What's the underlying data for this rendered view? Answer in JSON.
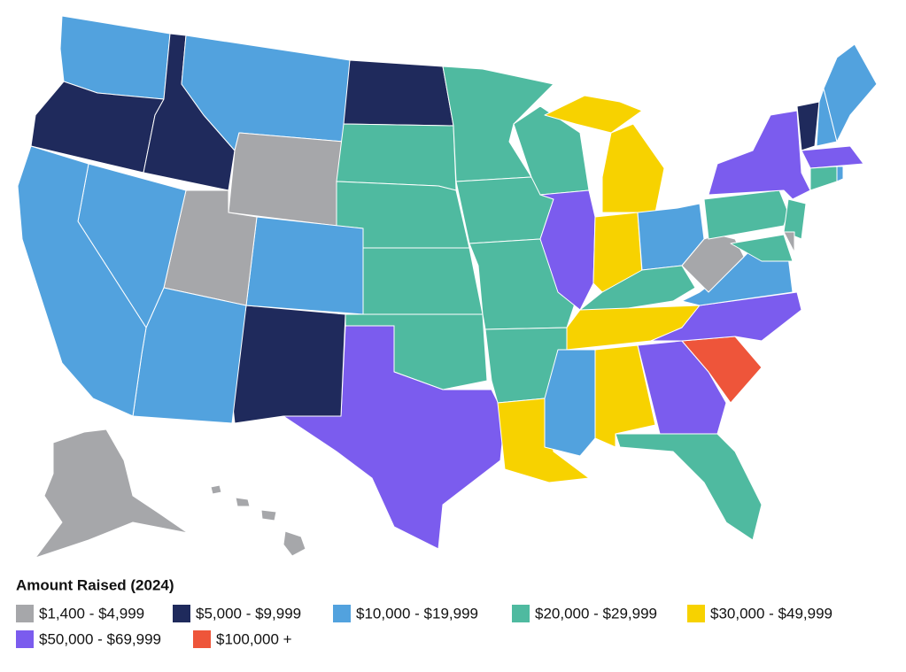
{
  "legend": {
    "title": "Amount Raised (2024)",
    "items": [
      {
        "label": "$1,400 - $4,999",
        "color": "#a6a7aa"
      },
      {
        "label": "$5,000 - $9,999",
        "color": "#1f2a5c"
      },
      {
        "label": "$10,000 - $19,999",
        "color": "#52a2de"
      },
      {
        "label": "$20,000 - $29,999",
        "color": "#4fbaa0"
      },
      {
        "label": "$30,000 - $49,999",
        "color": "#f7d200"
      },
      {
        "label": "$50,000 - $69,999",
        "color": "#7b5cee"
      },
      {
        "label": "$100,000 +",
        "color": "#ee553a"
      }
    ]
  }
}
